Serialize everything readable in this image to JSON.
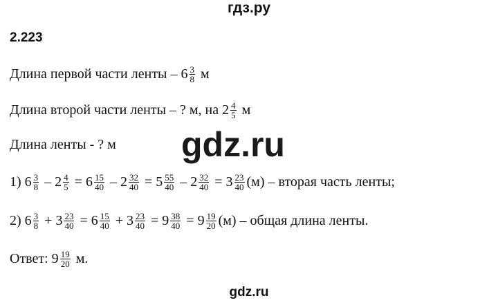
{
  "header": "гдз.ру",
  "problem_number": "2.223",
  "watermark": "gdz.ru",
  "footer": "gdz.ru",
  "lines": [
    [
      {
        "t": "Длина первой части ленты – 6"
      },
      {
        "n": "3",
        "d": "8"
      },
      {
        "t": " м"
      }
    ],
    [
      {
        "t": "Длина второй части ленты – ? м, на 2"
      },
      {
        "n": "4",
        "d": "5"
      },
      {
        "t": " м"
      }
    ],
    [
      {
        "t": "Длина ленты - ? м"
      }
    ],
    [
      {
        "t": "1) 6"
      },
      {
        "n": "3",
        "d": "8"
      },
      {
        "t": " – 2"
      },
      {
        "n": "4",
        "d": "5"
      },
      {
        "t": " = 6"
      },
      {
        "n": "15",
        "d": "40"
      },
      {
        "t": " – 2"
      },
      {
        "n": "32",
        "d": "40"
      },
      {
        "t": " = 5"
      },
      {
        "n": "55",
        "d": "40"
      },
      {
        "t": " – 2"
      },
      {
        "n": "32",
        "d": "40"
      },
      {
        "t": " = 3"
      },
      {
        "n": "23",
        "d": "40"
      },
      {
        "t": "(м) – вторая часть ленты;"
      }
    ],
    [
      {
        "t": "2) 6"
      },
      {
        "n": "3",
        "d": "8"
      },
      {
        "t": " + 3"
      },
      {
        "n": "23",
        "d": "40"
      },
      {
        "t": " = 6"
      },
      {
        "n": "15",
        "d": "40"
      },
      {
        "t": " + 3"
      },
      {
        "n": "23",
        "d": "40"
      },
      {
        "t": " = 9"
      },
      {
        "n": "38",
        "d": "40"
      },
      {
        "t": " = 9"
      },
      {
        "n": "19",
        "d": "20"
      },
      {
        "t": "(м) – общая длина ленты."
      }
    ],
    [
      {
        "t": "Ответ: 9"
      },
      {
        "n": "19",
        "d": "20"
      },
      {
        "t": " м."
      }
    ]
  ]
}
